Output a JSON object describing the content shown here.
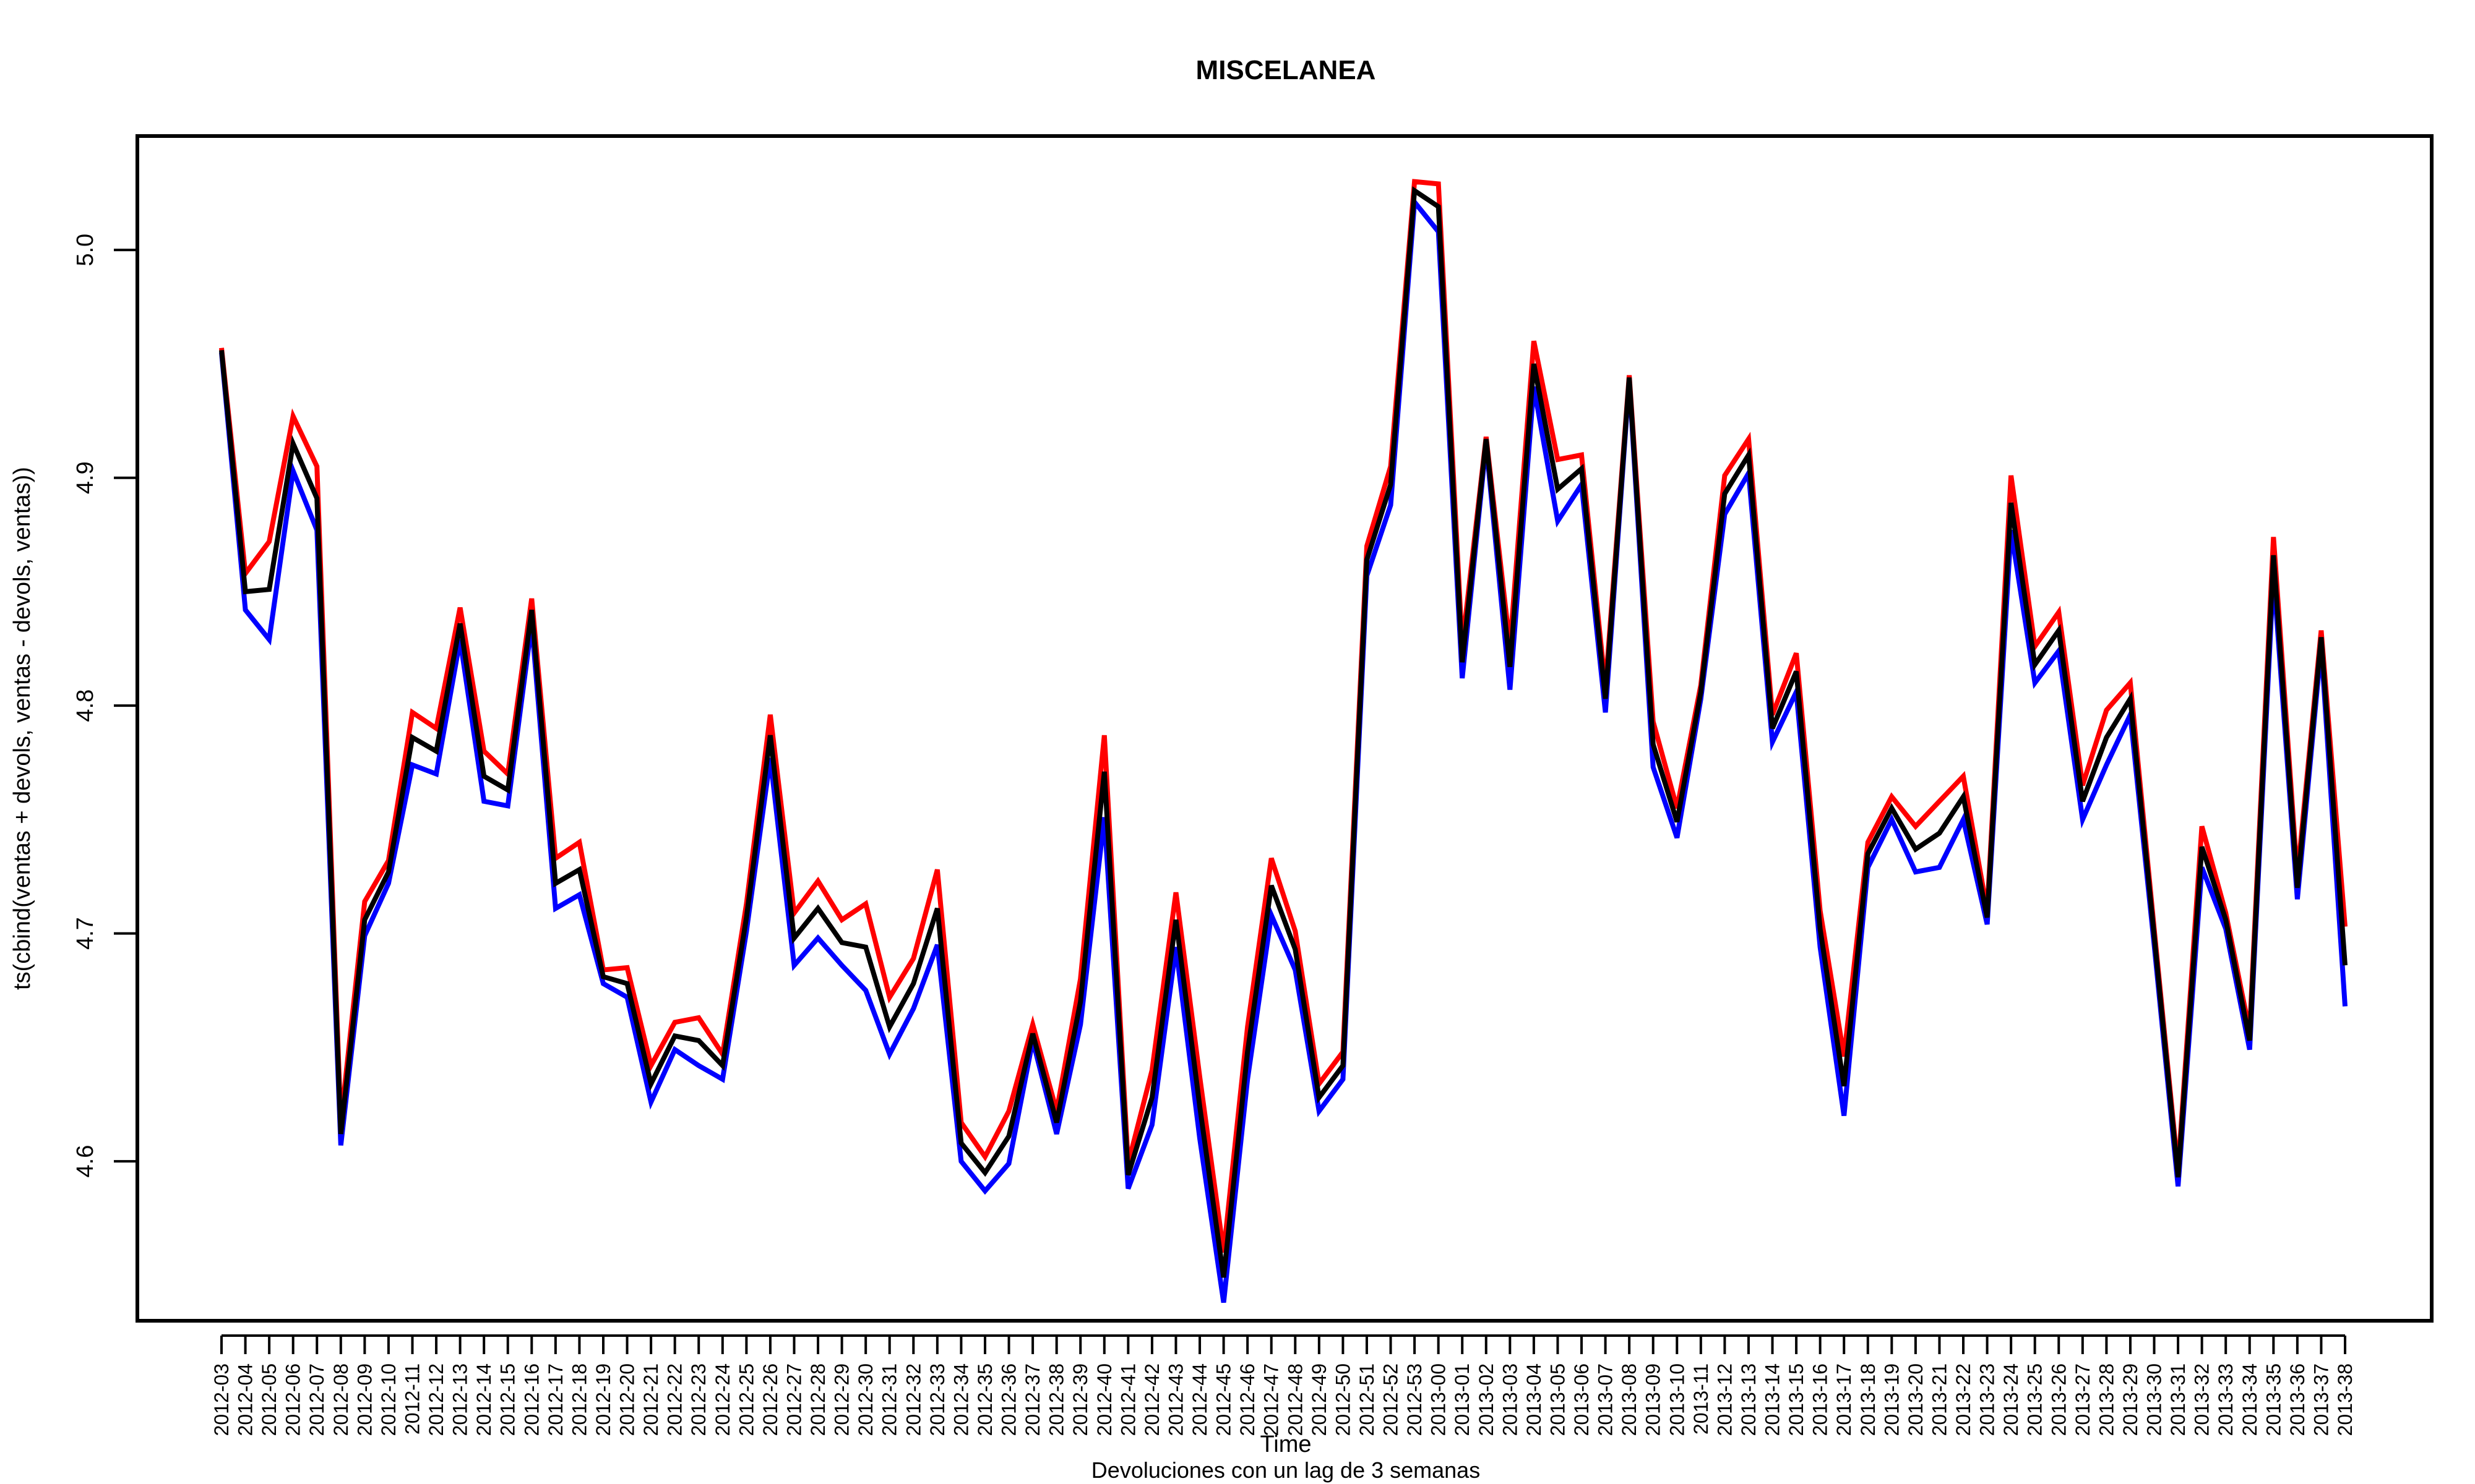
{
  "chart_data": {
    "type": "line",
    "title": "MISCELANEA",
    "xlabel": "Time",
    "ylabel": "ts(cbind(ventas + devols, ventas - devols, ventas))",
    "subtitle": "Devoluciones con un lag de 3 semanas",
    "ylim": [
      4.53,
      5.05
    ],
    "yticks": [
      4.6,
      4.7,
      4.8,
      4.9,
      5.0
    ],
    "ytick_labels": [
      "4.6",
      "4.7",
      "4.8",
      "4.9",
      "5.0"
    ],
    "grid": false,
    "legend": "none",
    "categories": [
      "2012-03",
      "2012-04",
      "2012-05",
      "2012-06",
      "2012-07",
      "2012-08",
      "2012-09",
      "2012-10",
      "2012-11",
      "2012-12",
      "2012-13",
      "2012-14",
      "2012-15",
      "2012-16",
      "2012-17",
      "2012-18",
      "2012-19",
      "2012-20",
      "2012-21",
      "2012-22",
      "2012-23",
      "2012-24",
      "2012-25",
      "2012-26",
      "2012-27",
      "2012-28",
      "2012-29",
      "2012-30",
      "2012-31",
      "2012-32",
      "2012-33",
      "2012-34",
      "2012-35",
      "2012-36",
      "2012-37",
      "2012-38",
      "2012-39",
      "2012-40",
      "2012-41",
      "2012-42",
      "2012-43",
      "2012-44",
      "2012-45",
      "2012-46",
      "2012-47",
      "2012-48",
      "2012-49",
      "2012-50",
      "2012-51",
      "2012-52",
      "2012-53",
      "2013-00",
      "2013-01",
      "2013-02",
      "2013-03",
      "2013-04",
      "2013-05",
      "2013-06",
      "2013-07",
      "2013-08",
      "2013-09",
      "2013-10",
      "2013-11",
      "2013-12",
      "2013-13",
      "2013-14",
      "2013-15",
      "2013-16",
      "2013-17",
      "2013-18",
      "2013-19",
      "2013-20",
      "2013-21",
      "2013-22",
      "2013-23",
      "2013-24",
      "2013-25",
      "2013-26",
      "2013-27",
      "2013-28",
      "2013-29",
      "2013-30",
      "2013-31",
      "2013-32",
      "2013-33",
      "2013-34",
      "2013-35",
      "2013-36",
      "2013-37",
      "2013-38"
    ],
    "series": [
      {
        "color": "#ff0000",
        "values": [
          4.957,
          4.858,
          4.872,
          4.927,
          4.905,
          4.617,
          4.714,
          4.732,
          4.797,
          4.79,
          4.843,
          4.78,
          4.77,
          4.847,
          4.733,
          4.74,
          4.684,
          4.685,
          4.642,
          4.661,
          4.663,
          4.647,
          4.713,
          4.796,
          4.709,
          4.723,
          4.706,
          4.713,
          4.672,
          4.689,
          4.728,
          4.617,
          4.602,
          4.622,
          4.66,
          4.622,
          4.68,
          4.787,
          4.599,
          4.64,
          4.718,
          4.637,
          4.56,
          4.659,
          4.733,
          4.701,
          4.634,
          4.648,
          4.87,
          4.905,
          5.03,
          5.029,
          4.826,
          4.918,
          4.826,
          4.96,
          4.908,
          4.91,
          4.808,
          4.945,
          4.793,
          4.755,
          4.809,
          4.901,
          4.917,
          4.796,
          4.823,
          4.71,
          4.646,
          4.74,
          4.76,
          4.747,
          4.758,
          4.769,
          4.71,
          4.901,
          4.826,
          4.841,
          4.765,
          4.798,
          4.81,
          4.702,
          4.596,
          4.747,
          4.709,
          4.657,
          4.874,
          4.725,
          4.833,
          4.703
        ]
      },
      {
        "color": "#0000ff",
        "values": [
          4.955,
          4.842,
          4.829,
          4.903,
          4.877,
          4.607,
          4.699,
          4.722,
          4.774,
          4.77,
          4.829,
          4.758,
          4.756,
          4.836,
          4.711,
          4.717,
          4.678,
          4.672,
          4.626,
          4.649,
          4.642,
          4.636,
          4.701,
          4.777,
          4.686,
          4.698,
          4.686,
          4.675,
          4.647,
          4.667,
          4.695,
          4.6,
          4.587,
          4.599,
          4.653,
          4.612,
          4.66,
          4.751,
          4.588,
          4.616,
          4.694,
          4.61,
          4.538,
          4.636,
          4.708,
          4.684,
          4.622,
          4.636,
          4.857,
          4.888,
          5.021,
          5.008,
          4.812,
          4.915,
          4.807,
          4.94,
          4.881,
          4.897,
          4.797,
          4.943,
          4.773,
          4.742,
          4.803,
          4.884,
          4.902,
          4.784,
          4.806,
          4.694,
          4.62,
          4.729,
          4.75,
          4.727,
          4.729,
          4.75,
          4.704,
          4.877,
          4.81,
          4.824,
          4.75,
          4.774,
          4.796,
          4.695,
          4.589,
          4.729,
          4.702,
          4.649,
          4.858,
          4.715,
          4.826,
          4.668
        ]
      },
      {
        "color": "#000000",
        "values": [
          4.956,
          4.85,
          4.851,
          4.915,
          4.891,
          4.612,
          4.706,
          4.727,
          4.786,
          4.78,
          4.836,
          4.769,
          4.763,
          4.842,
          4.722,
          4.728,
          4.681,
          4.678,
          4.634,
          4.655,
          4.653,
          4.642,
          4.707,
          4.787,
          4.698,
          4.711,
          4.696,
          4.694,
          4.659,
          4.678,
          4.711,
          4.608,
          4.595,
          4.611,
          4.656,
          4.617,
          4.67,
          4.771,
          4.594,
          4.628,
          4.706,
          4.624,
          4.549,
          4.648,
          4.721,
          4.693,
          4.628,
          4.642,
          4.864,
          4.897,
          5.026,
          5.019,
          4.819,
          4.917,
          4.817,
          4.95,
          4.895,
          4.904,
          4.803,
          4.944,
          4.783,
          4.749,
          4.806,
          4.893,
          4.91,
          4.79,
          4.815,
          4.702,
          4.633,
          4.735,
          4.755,
          4.737,
          4.744,
          4.76,
          4.707,
          4.889,
          4.818,
          4.833,
          4.758,
          4.786,
          4.803,
          4.699,
          4.593,
          4.738,
          4.706,
          4.653,
          4.866,
          4.72,
          4.83,
          4.686
        ]
      }
    ]
  }
}
